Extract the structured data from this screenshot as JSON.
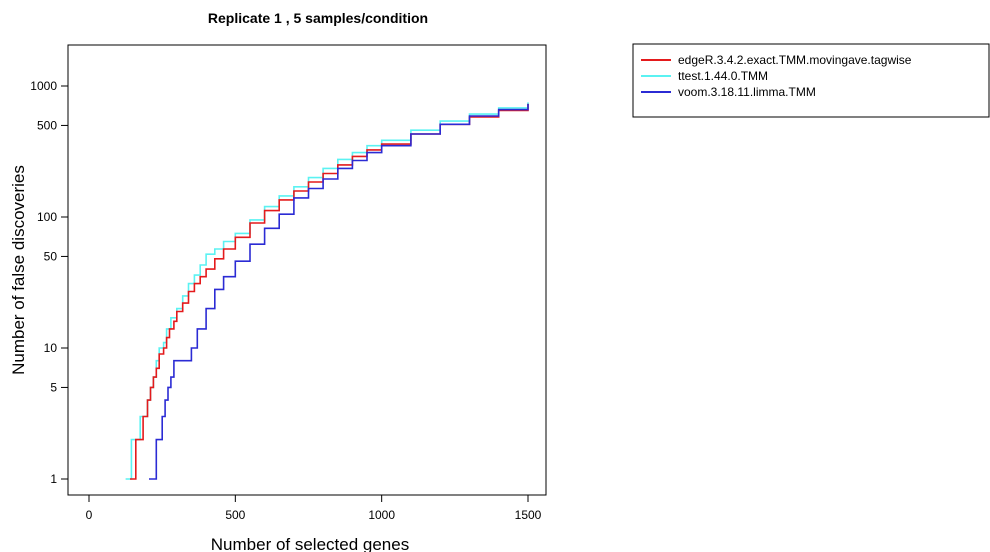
{
  "chart_data": {
    "type": "line",
    "title": "Replicate 1 ,  5 samples/condition",
    "xlabel": "Number of selected genes",
    "ylabel": "Number of false discoveries",
    "xlim": [
      0,
      1500
    ],
    "ylim": [
      1,
      1300
    ],
    "y_scale": "log",
    "x_ticks": [
      0,
      500,
      1000,
      1500
    ],
    "y_ticks": [
      1,
      5,
      10,
      50,
      100,
      500,
      1000
    ],
    "grid": false,
    "legend_position": "top-right",
    "series": [
      {
        "name": "edgeR.3.4.2.exact.TMM.movingave.tagwise",
        "color": "#e41a1c",
        "x": [
          140,
          150,
          160,
          175,
          185,
          200,
          210,
          220,
          230,
          240,
          255,
          265,
          275,
          290,
          300,
          320,
          340,
          360,
          380,
          400,
          430,
          460,
          500,
          550,
          600,
          650,
          700,
          750,
          800,
          850,
          900,
          950,
          1000,
          1100,
          1200,
          1300,
          1400,
          1500
        ],
        "y": [
          1,
          1,
          2,
          2,
          3,
          4,
          5,
          6,
          7,
          9,
          10,
          12,
          14,
          16,
          19,
          22,
          27,
          31,
          35,
          40,
          48,
          57,
          70,
          90,
          112,
          135,
          158,
          185,
          215,
          250,
          290,
          325,
          360,
          430,
          510,
          580,
          650,
          730
        ]
      },
      {
        "name": "ttest.1.44.0.TMM",
        "color": "#5bf2f2",
        "x": [
          125,
          135,
          145,
          160,
          175,
          190,
          200,
          210,
          220,
          230,
          240,
          255,
          265,
          280,
          300,
          320,
          340,
          360,
          380,
          400,
          430,
          460,
          500,
          550,
          600,
          650,
          700,
          750,
          800,
          850,
          900,
          950,
          1000,
          1100,
          1200,
          1300,
          1400,
          1500
        ],
        "y": [
          1,
          1,
          2,
          2,
          3,
          3,
          4,
          5,
          6,
          8,
          10,
          11,
          14,
          17,
          20,
          25,
          31,
          36,
          43,
          52,
          57,
          65,
          75,
          95,
          120,
          145,
          170,
          200,
          235,
          275,
          310,
          350,
          385,
          460,
          540,
          610,
          680,
          750
        ]
      },
      {
        "name": "voom.3.18.11.limma.TMM",
        "color": "#2b2bd4",
        "x": [
          205,
          225,
          230,
          240,
          250,
          260,
          270,
          280,
          290,
          310,
          330,
          350,
          370,
          400,
          430,
          460,
          500,
          550,
          600,
          650,
          700,
          750,
          800,
          850,
          900,
          950,
          1000,
          1100,
          1200,
          1300,
          1400,
          1500
        ],
        "y": [
          1,
          1,
          2,
          2,
          3,
          4,
          5,
          6,
          8,
          8,
          8,
          10,
          14,
          20,
          28,
          35,
          46,
          62,
          82,
          105,
          140,
          165,
          195,
          235,
          270,
          310,
          350,
          430,
          510,
          590,
          660,
          730
        ]
      }
    ]
  }
}
